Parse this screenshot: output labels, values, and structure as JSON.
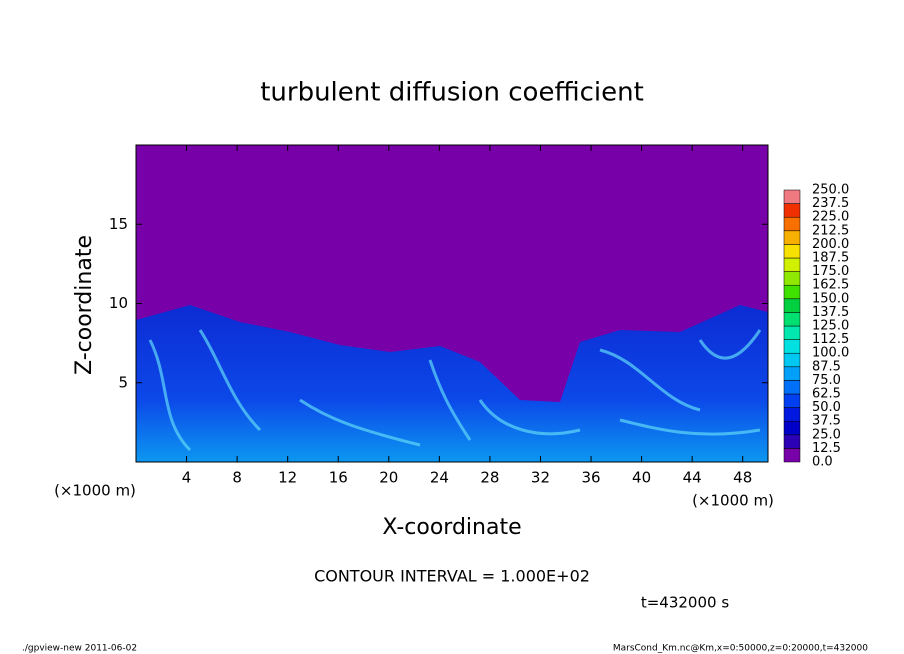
{
  "chart_data": {
    "type": "contour",
    "title": "turbulent diffusion coefficient",
    "xlabel": "X-coordinate",
    "ylabel": "Z-coordinate",
    "xunit": "(×1000 m)",
    "yunit": "(×1000 m)",
    "xlim": [
      0,
      50
    ],
    "xticks": [
      4,
      8,
      12,
      16,
      20,
      24,
      28,
      32,
      36,
      40,
      44,
      48
    ],
    "ylim": [
      0,
      20
    ],
    "yticks": [
      5,
      10,
      15
    ],
    "colorbar": {
      "lim": [
        0,
        250
      ],
      "ticks": [
        {
          "value": 0,
          "label": "0.0"
        },
        {
          "value": 12.5,
          "label": "12.5"
        },
        {
          "value": 25,
          "label": "25.0"
        },
        {
          "value": 37.5,
          "label": "37.5"
        },
        {
          "value": 50,
          "label": "50.0"
        },
        {
          "value": 62.5,
          "label": "62.5"
        },
        {
          "value": 75,
          "label": "75.0"
        },
        {
          "value": 87.5,
          "label": "87.5"
        },
        {
          "value": 100,
          "label": "100.0"
        },
        {
          "value": 112.5,
          "label": "112.5"
        },
        {
          "value": 125,
          "label": "125.0"
        },
        {
          "value": 137.5,
          "label": "137.5"
        },
        {
          "value": 150,
          "label": "150.0"
        },
        {
          "value": 162.5,
          "label": "162.5"
        },
        {
          "value": 175,
          "label": "175.0"
        },
        {
          "value": 187.5,
          "label": "187.5"
        },
        {
          "value": 200,
          "label": "200.0"
        },
        {
          "value": 212.5,
          "label": "212.5"
        },
        {
          "value": 225,
          "label": "225.0"
        },
        {
          "value": 237.5,
          "label": "237.5"
        },
        {
          "value": 250,
          "label": "250.0"
        }
      ],
      "colors": [
        "#7800a8",
        "#2c00b4",
        "#0000c8",
        "#0018e0",
        "#0040f0",
        "#0070f8",
        "#00a0f8",
        "#00c8f0",
        "#00e0e0",
        "#00e8b0",
        "#00e070",
        "#00d040",
        "#40e000",
        "#90e800",
        "#d0f000",
        "#f8e000",
        "#f8b000",
        "#f87000",
        "#f03000",
        "#f07880"
      ]
    },
    "contour_interval": "CONTOUR INTERVAL = 1.000E+02",
    "time_label": "t=432000 s",
    "footer_left": "./gpview-new   2011-06-02",
    "footer_right": "MarsCond_Km.nc@Km,x=0:50000,z=0:20000,t=432000"
  }
}
